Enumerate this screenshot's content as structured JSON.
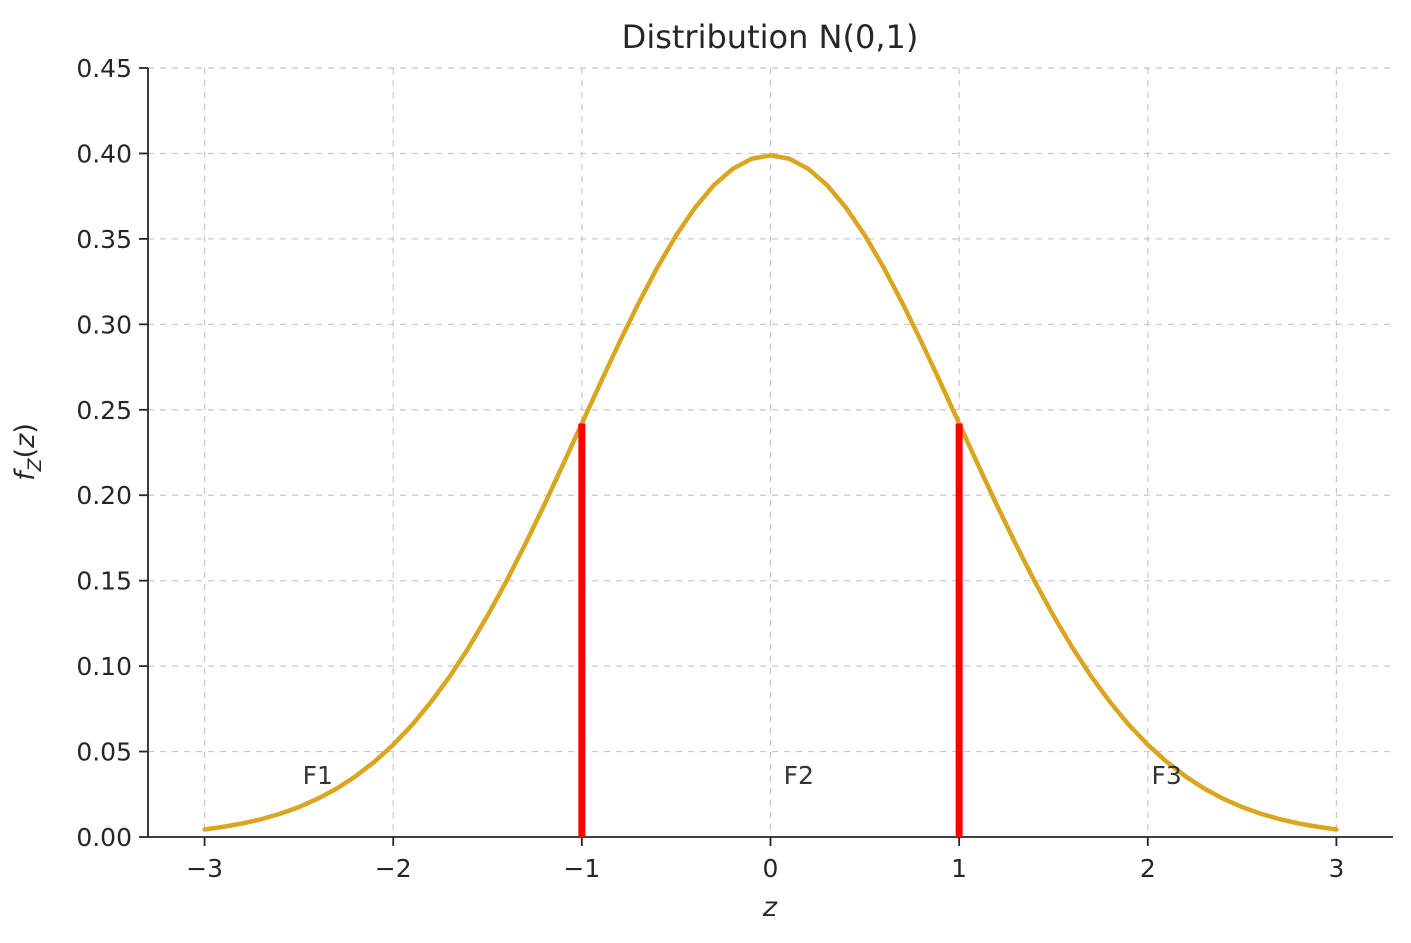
{
  "chart_data": {
    "type": "line",
    "title": "Distribution N(0,1)",
    "xlabel": "z",
    "ylabel": "f_Z(z)",
    "ylabel_parts": {
      "func": "f",
      "sub": "Z",
      "open": "(",
      "var": "z",
      "close": ")"
    },
    "xlim": [
      -3.3,
      3.3
    ],
    "ylim": [
      0,
      0.45
    ],
    "xticks": [
      -3,
      -2,
      -1,
      0,
      1,
      2,
      3
    ],
    "xtick_labels": [
      "−3",
      "−2",
      "−1",
      "0",
      "1",
      "2",
      "3"
    ],
    "yticks": [
      0.0,
      0.05,
      0.1,
      0.15,
      0.2,
      0.25,
      0.3,
      0.35,
      0.4,
      0.45
    ],
    "ytick_labels": [
      "0.00",
      "0.05",
      "0.10",
      "0.15",
      "0.20",
      "0.25",
      "0.30",
      "0.35",
      "0.40",
      "0.45"
    ],
    "grid": true,
    "grid_style": "dashed",
    "legend": "none",
    "distribution": {
      "name": "normal",
      "mean": 0,
      "sd": 1
    },
    "series": [
      {
        "name": "standard-normal-pdf",
        "color": "#DAA520",
        "x": [
          -3.0,
          -2.9,
          -2.8,
          -2.7,
          -2.6,
          -2.5,
          -2.4,
          -2.3,
          -2.2,
          -2.1,
          -2.0,
          -1.9,
          -1.8,
          -1.7,
          -1.6,
          -1.5,
          -1.4,
          -1.3,
          -1.2,
          -1.1,
          -1.0,
          -0.9,
          -0.8,
          -0.7,
          -0.6,
          -0.5,
          -0.4,
          -0.3,
          -0.2,
          -0.1,
          0.0,
          0.1,
          0.2,
          0.3,
          0.4,
          0.5,
          0.6,
          0.7,
          0.8,
          0.9,
          1.0,
          1.1,
          1.2,
          1.3,
          1.4,
          1.5,
          1.6,
          1.7,
          1.8,
          1.9,
          2.0,
          2.1,
          2.2,
          2.3,
          2.4,
          2.5,
          2.6,
          2.7,
          2.8,
          2.9,
          3.0
        ],
        "y": [
          0.0044,
          0.006,
          0.0079,
          0.0104,
          0.0136,
          0.0175,
          0.0224,
          0.0283,
          0.0355,
          0.044,
          0.054,
          0.0656,
          0.079,
          0.094,
          0.1109,
          0.1295,
          0.1497,
          0.1714,
          0.1942,
          0.2179,
          0.242,
          0.2661,
          0.2897,
          0.3123,
          0.3332,
          0.3521,
          0.3683,
          0.3814,
          0.391,
          0.3969,
          0.3989,
          0.3969,
          0.391,
          0.3814,
          0.3683,
          0.3521,
          0.3332,
          0.3123,
          0.2897,
          0.2661,
          0.242,
          0.2179,
          0.1942,
          0.1714,
          0.1497,
          0.1295,
          0.1109,
          0.094,
          0.079,
          0.0656,
          0.054,
          0.044,
          0.0355,
          0.0283,
          0.0224,
          0.0175,
          0.0136,
          0.0104,
          0.0079,
          0.006,
          0.0044
        ]
      }
    ],
    "vlines": [
      {
        "x": -1,
        "y0": 0,
        "y1": 0.242,
        "color": "#FF0000"
      },
      {
        "x": 1,
        "y0": 0,
        "y1": 0.242,
        "color": "#FF0000"
      }
    ],
    "annotations": [
      {
        "text": "F1",
        "x": -2.4,
        "y": 0.035
      },
      {
        "text": "F2",
        "x": 0.15,
        "y": 0.035
      },
      {
        "text": "F3",
        "x": 2.1,
        "y": 0.035
      }
    ],
    "colors": {
      "curve": "#DAA520",
      "vline": "#FF0000",
      "grid": "#C8C8C8",
      "spine": "#262626",
      "text": "#262626",
      "annotation": "#333333",
      "background": "#FFFFFF"
    }
  }
}
